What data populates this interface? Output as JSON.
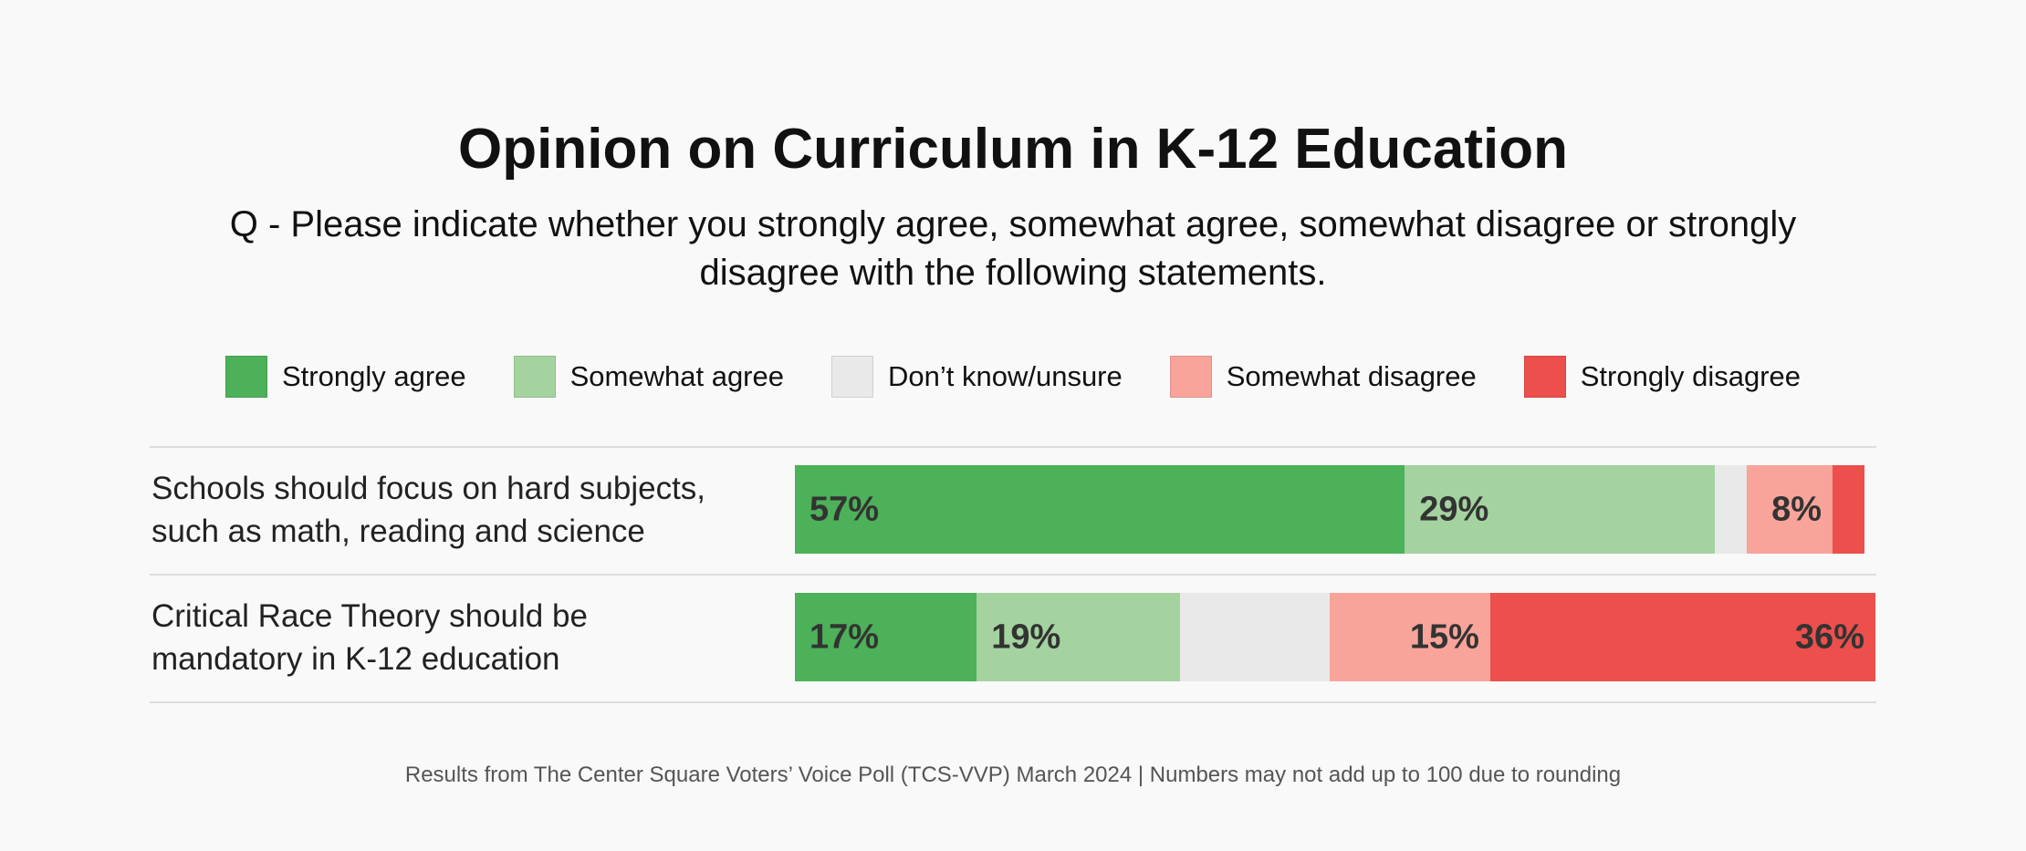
{
  "chart_data": {
    "type": "stacked-bar-horizontal",
    "title": "Opinion on Curriculum in K-12 Education",
    "subtitle": [
      "Q -  Please indicate whether you strongly agree, somewhat agree, somewhat disagree or strongly",
      "disagree with the following statements."
    ],
    "categories": [
      [
        "Schools should focus on hard subjects,",
        "such as math, reading and science"
      ],
      [
        "Critical Race Theory should be",
        "mandatory in K-12 education"
      ]
    ],
    "xlim": [
      0,
      101
    ],
    "series": [
      {
        "name": "Strongly agree",
        "color": "#4cb158",
        "values": [
          57,
          17
        ],
        "value_labels": [
          "57%",
          "17%"
        ],
        "label_align": "left"
      },
      {
        "name": "Somewhat agree",
        "color": "#a4d3a0",
        "values": [
          29,
          19
        ],
        "value_labels": [
          "29%",
          "19%"
        ],
        "label_align": "left"
      },
      {
        "name": "Don’t know/unsure",
        "color": "#e9e9e9",
        "values": [
          3,
          14
        ],
        "value_labels": [
          null,
          null
        ],
        "label_align": "left"
      },
      {
        "name": "Somewhat disagree",
        "color": "#f8a49b",
        "values": [
          8,
          15
        ],
        "value_labels": [
          "8%",
          "15%"
        ],
        "label_align": "right"
      },
      {
        "name": "Strongly disagree",
        "color": "#ec4f4c",
        "values": [
          3,
          36
        ],
        "value_labels": [
          null,
          "36%"
        ],
        "label_align": "right"
      }
    ],
    "footnote": "Results from The Center Square Voters’ Voice Poll (TCS-VVP) March 2024 | Numbers may not add up to 100 due to rounding"
  }
}
